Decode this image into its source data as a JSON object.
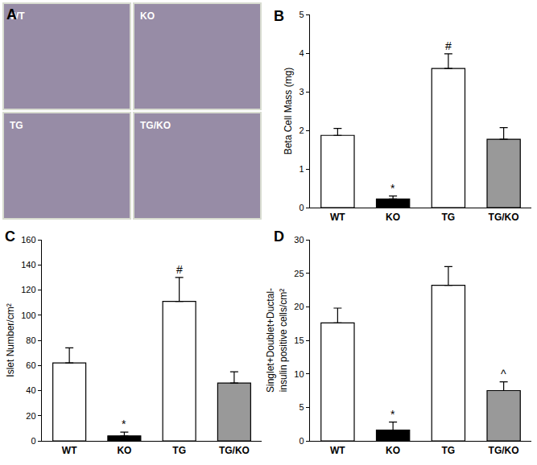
{
  "panel_a": {
    "title": "A",
    "images": [
      "WT",
      "KO",
      "TG",
      "TG/KO"
    ]
  },
  "chart_data": [
    {
      "type": "bar",
      "title": "B",
      "ylabel": "Beta Cell Mass (mg)",
      "categories": [
        "WT",
        "KO",
        "TG",
        "TG/KO"
      ],
      "values": [
        1.87,
        0.22,
        3.6,
        1.77
      ],
      "errors": [
        0.18,
        0.08,
        0.38,
        0.3
      ],
      "colors": [
        "#ffffff",
        "#000000",
        "#ffffff",
        "#999999"
      ],
      "ylim": [
        0,
        5
      ],
      "yticks": [
        0,
        1,
        2,
        3,
        4,
        5
      ],
      "grid": false,
      "annotations": [
        {
          "x": "KO",
          "text": "*"
        },
        {
          "x": "TG",
          "text": "#"
        }
      ]
    },
    {
      "type": "bar",
      "title": "C",
      "ylabel": "Islet Number/cm²",
      "categories": [
        "WT",
        "KO",
        "TG",
        "TG/KO"
      ],
      "values": [
        62,
        4,
        111,
        46
      ],
      "errors": [
        12,
        3,
        19,
        9
      ],
      "colors": [
        "#ffffff",
        "#000000",
        "#ffffff",
        "#999999"
      ],
      "ylim": [
        0,
        160
      ],
      "yticks": [
        0,
        20,
        40,
        60,
        80,
        100,
        120,
        140,
        160
      ],
      "grid": false,
      "annotations": [
        {
          "x": "KO",
          "text": "*"
        },
        {
          "x": "TG",
          "text": "#"
        }
      ]
    },
    {
      "type": "bar",
      "title": "D",
      "ylabel": "Singlet+Doublet+Ductal-\ninsulin positive cells/cm²",
      "categories": [
        "WT",
        "KO",
        "TG",
        "TG/KO"
      ],
      "values": [
        17.6,
        1.6,
        23.2,
        7.5
      ],
      "errors": [
        2.2,
        1.2,
        2.8,
        1.3
      ],
      "colors": [
        "#ffffff",
        "#000000",
        "#ffffff",
        "#999999"
      ],
      "ylim": [
        0,
        30
      ],
      "yticks": [
        0,
        5,
        10,
        15,
        20,
        25,
        30
      ],
      "grid": false,
      "annotations": [
        {
          "x": "KO",
          "text": "*"
        },
        {
          "x": "TG/KO",
          "text": "^"
        }
      ]
    }
  ]
}
